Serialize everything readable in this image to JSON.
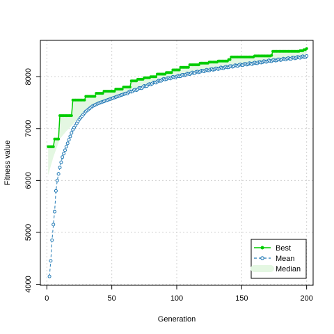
{
  "chart_data": {
    "type": "line",
    "xlabel": "Generation",
    "ylabel": "Fitness value",
    "xlim": [
      -5,
      205
    ],
    "ylim": [
      3980,
      8700
    ],
    "x_ticks": [
      0,
      50,
      100,
      150,
      200
    ],
    "y_ticks": [
      4000,
      5000,
      6000,
      7000,
      8000
    ],
    "grid": true,
    "legend_position": "bottom-right",
    "colors": {
      "best": "#00cc00",
      "mean": "#1f78b4",
      "median_fill": "#e4f7e2",
      "grid": "#d0d0d0"
    },
    "series": [
      {
        "name": "Best",
        "values": [
          [
            1,
            6650
          ],
          [
            5,
            6650
          ],
          [
            6,
            6800
          ],
          [
            9,
            6800
          ],
          [
            10,
            7250
          ],
          [
            19,
            7250
          ],
          [
            20,
            7550
          ],
          [
            29,
            7550
          ],
          [
            30,
            7620
          ],
          [
            37,
            7620
          ],
          [
            38,
            7680
          ],
          [
            43,
            7680
          ],
          [
            44,
            7720
          ],
          [
            52,
            7720
          ],
          [
            53,
            7760
          ],
          [
            58,
            7760
          ],
          [
            59,
            7800
          ],
          [
            64,
            7800
          ],
          [
            65,
            7920
          ],
          [
            70,
            7950
          ],
          [
            75,
            7980
          ],
          [
            80,
            8000
          ],
          [
            85,
            8050
          ],
          [
            92,
            8080
          ],
          [
            97,
            8130
          ],
          [
            103,
            8180
          ],
          [
            110,
            8230
          ],
          [
            118,
            8260
          ],
          [
            125,
            8280
          ],
          [
            132,
            8300
          ],
          [
            140,
            8330
          ],
          [
            142,
            8380
          ],
          [
            160,
            8400
          ],
          [
            173,
            8410
          ],
          [
            174,
            8490
          ],
          [
            195,
            8500
          ],
          [
            198,
            8520
          ],
          [
            200,
            8540
          ]
        ]
      },
      {
        "name": "Mean",
        "values": [
          [
            2,
            4150
          ],
          [
            3,
            4450
          ],
          [
            4,
            4850
          ],
          [
            5,
            5150
          ],
          [
            6,
            5400
          ],
          [
            7,
            5800
          ],
          [
            8,
            6000
          ],
          [
            10,
            6250
          ],
          [
            12,
            6450
          ],
          [
            15,
            6650
          ],
          [
            18,
            6850
          ],
          [
            20,
            6980
          ],
          [
            25,
            7180
          ],
          [
            30,
            7330
          ],
          [
            35,
            7430
          ],
          [
            40,
            7490
          ],
          [
            50,
            7580
          ],
          [
            60,
            7670
          ],
          [
            70,
            7760
          ],
          [
            80,
            7860
          ],
          [
            90,
            7950
          ],
          [
            100,
            8000
          ],
          [
            110,
            8060
          ],
          [
            120,
            8110
          ],
          [
            130,
            8150
          ],
          [
            140,
            8190
          ],
          [
            150,
            8230
          ],
          [
            160,
            8260
          ],
          [
            170,
            8300
          ],
          [
            180,
            8330
          ],
          [
            190,
            8360
          ],
          [
            200,
            8390
          ]
        ]
      },
      {
        "name": "Median",
        "values": [
          [
            1,
            6100
          ],
          [
            5,
            6450
          ],
          [
            10,
            6800
          ],
          [
            15,
            6950
          ],
          [
            20,
            7080
          ],
          [
            30,
            7380
          ],
          [
            40,
            7510
          ],
          [
            50,
            7600
          ],
          [
            60,
            7690
          ],
          [
            70,
            7790
          ],
          [
            80,
            7880
          ],
          [
            90,
            7960
          ],
          [
            100,
            8020
          ],
          [
            120,
            8120
          ],
          [
            150,
            8240
          ],
          [
            200,
            8420
          ]
        ]
      }
    ]
  }
}
